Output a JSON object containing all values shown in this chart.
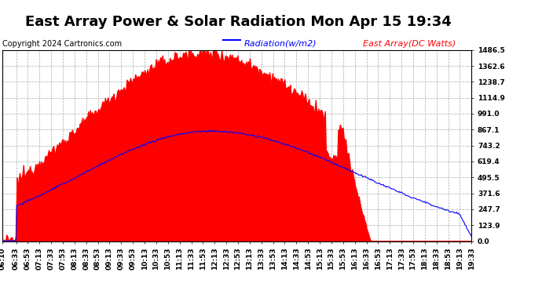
{
  "title": "East Array Power & Solar Radiation Mon Apr 15 19:34",
  "copyright": "Copyright 2024 Cartronics.com",
  "legend_radiation": "Radiation(w/m2)",
  "legend_east_array": "East Array(DC Watts)",
  "yticks": [
    0.0,
    123.9,
    247.7,
    371.6,
    495.5,
    619.4,
    743.2,
    867.1,
    991.0,
    1114.9,
    1238.7,
    1362.6,
    1486.5
  ],
  "ymax": 1486.5,
  "ymin": 0.0,
  "bg_color": "#ffffff",
  "grid_color": "#aaaaaa",
  "bar_color": "#ff0000",
  "line_color": "#0000ff",
  "title_fontsize": 13,
  "tick_fontsize": 6.5,
  "copyright_fontsize": 7,
  "legend_fontsize": 8,
  "x_times": [
    "06:10",
    "06:33",
    "06:53",
    "07:13",
    "07:33",
    "07:53",
    "08:13",
    "08:33",
    "08:53",
    "09:13",
    "09:33",
    "09:53",
    "10:13",
    "10:33",
    "10:53",
    "11:13",
    "11:33",
    "11:53",
    "12:13",
    "12:33",
    "12:53",
    "13:13",
    "13:33",
    "13:53",
    "14:13",
    "14:33",
    "14:53",
    "15:13",
    "15:33",
    "15:53",
    "16:13",
    "16:33",
    "16:53",
    "17:13",
    "17:33",
    "17:53",
    "18:13",
    "18:33",
    "18:53",
    "19:13",
    "19:33"
  ],
  "east_array_peak": 1460,
  "radiation_peak": 855,
  "total_minutes": 803
}
